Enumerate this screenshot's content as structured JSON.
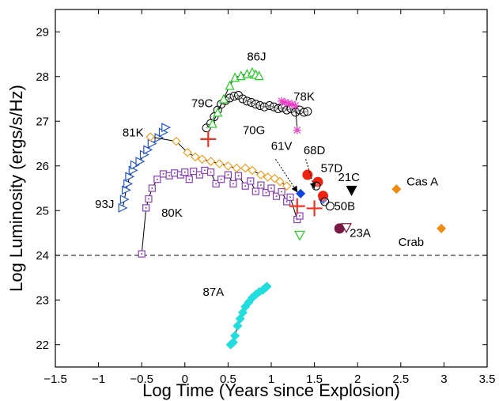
{
  "chart_data": {
    "type": "scatter",
    "title": "",
    "xlabel": "Log Time (Years since Explosion)",
    "ylabel": "Log Luminosity (ergs/s/Hz)",
    "xlim": [
      -1.5,
      3.5
    ],
    "ylim": [
      21.5,
      29.5
    ],
    "xticks": [
      -1.5,
      -1,
      -0.5,
      0,
      0.5,
      1,
      1.5,
      2,
      2.5,
      3,
      3.5
    ],
    "xtick_labels": [
      "−1.5",
      "−1",
      "−0.5",
      "0",
      "0.5",
      "1",
      "1.5",
      "2",
      "2.5",
      "3",
      "3.5"
    ],
    "yticks": [
      22,
      23,
      24,
      25,
      26,
      27,
      28,
      29
    ],
    "ytick_labels": [
      "22",
      "23",
      "24",
      "25",
      "26",
      "27",
      "28",
      "29"
    ],
    "grid": false,
    "reference_line": {
      "y": 24,
      "style": "dashed"
    },
    "series": [
      {
        "name": "93J",
        "marker": "triangle-right",
        "color": "#2255cc",
        "connected": true,
        "points": [
          [
            -0.72,
            25.06
          ],
          [
            -0.7,
            25.25
          ],
          [
            -0.68,
            25.46
          ],
          [
            -0.66,
            25.6
          ],
          [
            -0.64,
            25.76
          ],
          [
            -0.6,
            25.9
          ],
          [
            -0.58,
            26.02
          ],
          [
            -0.52,
            26.1
          ],
          [
            -0.47,
            26.25
          ],
          [
            -0.43,
            26.36
          ],
          [
            -0.38,
            26.5
          ],
          [
            -0.3,
            26.63
          ],
          [
            -0.25,
            26.75
          ],
          [
            -0.22,
            26.86
          ]
        ]
      },
      {
        "name": "80K",
        "marker": "square-dot",
        "color": "#8a3fb8",
        "connected": true,
        "points": [
          [
            -0.5,
            24.03
          ],
          [
            -0.45,
            25.06
          ],
          [
            -0.42,
            25.26
          ],
          [
            -0.38,
            25.5
          ],
          [
            -0.32,
            25.7
          ],
          [
            -0.25,
            25.82
          ],
          [
            -0.18,
            25.78
          ],
          [
            -0.12,
            25.84
          ],
          [
            -0.05,
            25.8
          ],
          [
            0.0,
            25.86
          ],
          [
            0.05,
            25.7
          ],
          [
            0.1,
            25.88
          ],
          [
            0.17,
            25.8
          ],
          [
            0.23,
            25.9
          ],
          [
            0.3,
            25.86
          ],
          [
            0.36,
            25.6
          ],
          [
            0.42,
            25.7
          ],
          [
            0.5,
            25.8
          ],
          [
            0.56,
            25.6
          ],
          [
            0.62,
            25.78
          ],
          [
            0.7,
            25.55
          ],
          [
            0.76,
            25.66
          ],
          [
            0.82,
            25.43
          ],
          [
            0.88,
            25.57
          ],
          [
            0.94,
            25.4
          ],
          [
            1.0,
            25.5
          ],
          [
            1.06,
            25.32
          ],
          [
            1.12,
            25.42
          ],
          [
            1.18,
            25.2
          ],
          [
            1.22,
            25.3
          ],
          [
            1.3,
            24.8
          ],
          [
            1.33,
            24.88
          ]
        ]
      },
      {
        "name": "81K",
        "marker": "diamond-open",
        "color": "#f0a020",
        "connected": true,
        "points": [
          [
            -0.4,
            26.65
          ],
          [
            -0.1,
            26.55
          ],
          [
            0.03,
            26.3
          ],
          [
            0.12,
            26.2
          ],
          [
            0.2,
            26.15
          ],
          [
            0.3,
            26.1
          ],
          [
            0.4,
            26.05
          ],
          [
            0.5,
            26.0
          ],
          [
            0.6,
            25.95
          ],
          [
            0.7,
            25.95
          ],
          [
            0.78,
            25.9
          ],
          [
            0.88,
            25.8
          ],
          [
            0.96,
            25.75
          ],
          [
            1.04,
            25.72
          ],
          [
            1.1,
            25.65
          ],
          [
            1.18,
            25.55
          ]
        ]
      },
      {
        "name": "79C",
        "marker": "circle-open",
        "color": "#000000",
        "connected": true,
        "points": [
          [
            0.25,
            26.85
          ],
          [
            0.3,
            26.95
          ],
          [
            0.34,
            27.1
          ],
          [
            0.38,
            27.25
          ],
          [
            0.42,
            27.38
          ],
          [
            0.47,
            27.46
          ],
          [
            0.52,
            27.52
          ],
          [
            0.57,
            27.56
          ],
          [
            0.62,
            27.58
          ],
          [
            0.67,
            27.5
          ],
          [
            0.72,
            27.45
          ],
          [
            0.77,
            27.42
          ],
          [
            0.82,
            27.38
          ],
          [
            0.87,
            27.35
          ],
          [
            0.92,
            27.32
          ],
          [
            0.98,
            27.35
          ],
          [
            1.03,
            27.32
          ],
          [
            1.08,
            27.28
          ],
          [
            1.13,
            27.3
          ],
          [
            1.18,
            27.25
          ],
          [
            1.23,
            27.28
          ],
          [
            1.28,
            27.2
          ],
          [
            1.33,
            27.25
          ],
          [
            1.38,
            27.2
          ],
          [
            1.42,
            27.22
          ]
        ]
      },
      {
        "name": "86J",
        "marker": "triangle-up",
        "color": "#22cc22",
        "connected": true,
        "points": [
          [
            0.32,
            26.95
          ],
          [
            0.38,
            27.2
          ],
          [
            0.45,
            27.5
          ],
          [
            0.52,
            27.8
          ],
          [
            0.58,
            27.98
          ],
          [
            0.65,
            28.02
          ],
          [
            0.72,
            28.06
          ],
          [
            0.78,
            28.1
          ],
          [
            0.82,
            28.05
          ],
          [
            0.86,
            28.02
          ]
        ]
      },
      {
        "name": "78K",
        "marker": "asterisk",
        "color": "#ee44cc",
        "connected": true,
        "points": [
          [
            1.12,
            27.45
          ],
          [
            1.16,
            27.42
          ],
          [
            1.2,
            27.4
          ],
          [
            1.24,
            27.38
          ],
          [
            1.28,
            27.35
          ],
          [
            1.3,
            26.8
          ]
        ]
      },
      {
        "name": "70G",
        "marker": "plus",
        "color": "#ee3322",
        "connected": false,
        "points": [
          [
            0.27,
            26.6
          ],
          [
            1.3,
            25.1
          ],
          [
            1.5,
            25.05
          ]
        ]
      },
      {
        "name": "61V",
        "marker": "diamond-filled",
        "color": "#1144dd",
        "connected": false,
        "points": [
          [
            1.34,
            25.38
          ],
          [
            1.6,
            25.25
          ]
        ]
      },
      {
        "name": "68D",
        "marker": "circle-filled",
        "color": "#ee2211",
        "connected": false,
        "points": [
          [
            1.42,
            25.8
          ],
          [
            1.54,
            25.64
          ],
          [
            1.6,
            25.33
          ]
        ]
      },
      {
        "name": "57D",
        "marker": "circle-open",
        "color": "#000000",
        "connected": false,
        "points": [
          [
            1.52,
            25.55
          ],
          [
            1.62,
            25.2
          ]
        ]
      },
      {
        "name": "50B",
        "marker": "circle-open",
        "color": "#000000",
        "connected": false,
        "points": [
          [
            1.68,
            25.1
          ]
        ]
      },
      {
        "name": "21C",
        "marker": "triangle-down-filled",
        "color": "#000000",
        "connected": false,
        "points": [
          [
            1.93,
            25.45
          ]
        ]
      },
      {
        "name": "23A",
        "marker": "circle-filled",
        "color": "#7a1a44",
        "connected": false,
        "points": [
          [
            1.79,
            24.6
          ]
        ]
      },
      {
        "name": "23A-limit",
        "marker": "triangle-down-open",
        "color": "#7a1a44",
        "connected": false,
        "points": [
          [
            1.87,
            24.62
          ]
        ]
      },
      {
        "name": "green-limit",
        "marker": "triangle-down-open",
        "color": "#22cc22",
        "connected": false,
        "points": [
          [
            1.33,
            24.45
          ]
        ]
      },
      {
        "name": "Cas A",
        "marker": "diamond-filled",
        "color": "#f08a10",
        "connected": false,
        "points": [
          [
            2.45,
            25.48
          ]
        ]
      },
      {
        "name": "Crab",
        "marker": "diamond-filled",
        "color": "#f08a10",
        "connected": false,
        "points": [
          [
            2.97,
            24.6
          ]
        ]
      },
      {
        "name": "87A",
        "marker": "diamond-filled",
        "color": "#22dddd",
        "connected": true,
        "points": [
          [
            0.53,
            22.0
          ],
          [
            0.56,
            22.05
          ],
          [
            0.58,
            22.2
          ],
          [
            0.61,
            22.42
          ],
          [
            0.64,
            22.58
          ],
          [
            0.67,
            22.72
          ],
          [
            0.7,
            22.85
          ],
          [
            0.74,
            22.95
          ],
          [
            0.78,
            23.05
          ],
          [
            0.82,
            23.12
          ],
          [
            0.86,
            23.18
          ],
          [
            0.9,
            23.22
          ],
          [
            0.93,
            23.27
          ],
          [
            0.95,
            23.3
          ]
        ]
      }
    ],
    "annotations": [
      {
        "text": "86J",
        "x": 0.83,
        "y": 28.45
      },
      {
        "text": "79C",
        "x": 0.2,
        "y": 27.4
      },
      {
        "text": "78K",
        "x": 1.38,
        "y": 27.55
      },
      {
        "text": "81K",
        "x": -0.6,
        "y": 26.75
      },
      {
        "text": "70G",
        "x": 0.8,
        "y": 26.8
      },
      {
        "text": "61V",
        "x": 1.12,
        "y": 26.45
      },
      {
        "text": "68D",
        "x": 1.5,
        "y": 26.35
      },
      {
        "text": "57D",
        "x": 1.7,
        "y": 25.95
      },
      {
        "text": "21C",
        "x": 1.9,
        "y": 25.75
      },
      {
        "text": "Cas A",
        "x": 2.75,
        "y": 25.65
      },
      {
        "text": "93J",
        "x": -0.93,
        "y": 25.15
      },
      {
        "text": "80K",
        "x": -0.15,
        "y": 24.95
      },
      {
        "text": "50B",
        "x": 1.85,
        "y": 25.1
      },
      {
        "text": "23A",
        "x": 2.03,
        "y": 24.5
      },
      {
        "text": "Crab",
        "x": 2.62,
        "y": 24.3
      },
      {
        "text": "87A",
        "x": 0.33,
        "y": 23.18
      }
    ],
    "arrows": [
      {
        "from": [
          1.05,
          26.15
        ],
        "to": [
          1.3,
          25.42
        ]
      },
      {
        "from": [
          1.4,
          26.15
        ],
        "to": [
          1.5,
          25.5
        ]
      }
    ]
  }
}
